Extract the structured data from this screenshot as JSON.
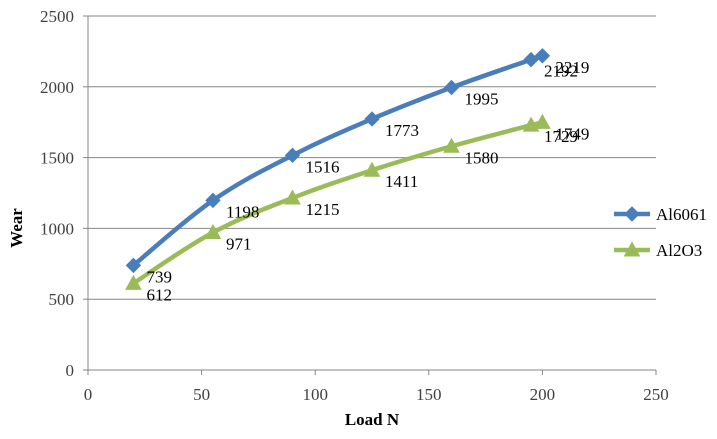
{
  "chart_data": {
    "type": "line",
    "title": "",
    "xlabel": "Load N",
    "ylabel": "Wear",
    "xlim": [
      0,
      250
    ],
    "ylim": [
      0,
      2500
    ],
    "x_ticks": [
      0,
      50,
      100,
      150,
      200,
      250
    ],
    "y_ticks": [
      0,
      500,
      1000,
      1500,
      2000,
      2500
    ],
    "grid": "horizontal",
    "legend_position": "right",
    "series": [
      {
        "name": "Al6061",
        "color": "#4a7ebb",
        "marker": "diamond",
        "x": [
          20,
          55,
          90,
          125,
          160,
          195,
          200
        ],
        "values": [
          739,
          1198,
          1516,
          1773,
          1995,
          2192,
          2219
        ],
        "labels": [
          "739",
          "1198",
          "1516",
          "1773",
          "1995",
          "2192",
          "2219"
        ]
      },
      {
        "name": "Al2O3",
        "color": "#9bbb59",
        "marker": "triangle",
        "x": [
          20,
          55,
          90,
          125,
          160,
          195,
          200
        ],
        "values": [
          612,
          971,
          1215,
          1411,
          1580,
          1729,
          1749
        ],
        "labels": [
          "612",
          "971",
          "1215",
          "1411",
          "1580",
          "1729",
          "1749"
        ]
      }
    ]
  }
}
